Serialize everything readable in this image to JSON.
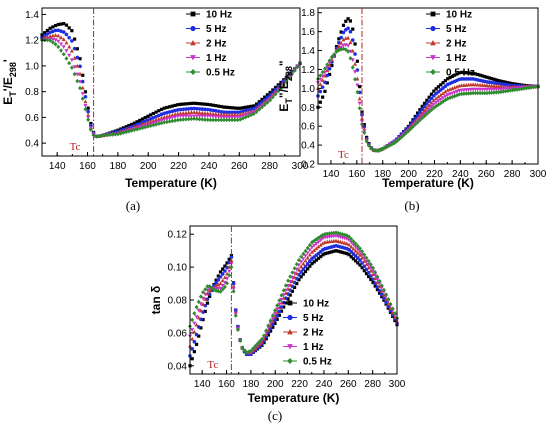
{
  "chart_data": [
    {
      "type": "scatter",
      "panel_label": "(a)",
      "xlabel": "Temperature (K)",
      "ylabel": {
        "main": "E",
        "sub1": "T",
        "sep": "'/E",
        "sub2": "298",
        "tail": "'"
      },
      "xlim": [
        130,
        300
      ],
      "ylim": [
        0.3,
        1.45
      ],
      "xticks": [
        140,
        160,
        180,
        200,
        220,
        240,
        260,
        280,
        300
      ],
      "yticks": [
        0.4,
        0.6,
        0.8,
        1.0,
        1.2,
        1.4
      ],
      "ytick_labels": [
        "0.4",
        "0.6",
        "0.8",
        "1.0",
        "1.2",
        "1.4"
      ],
      "tc_x": 164,
      "tc_label": "Tc",
      "legend_position": "top-right",
      "series": [
        {
          "name": "10 Hz",
          "color": "#000000",
          "marker": "square",
          "x": [
            130,
            135,
            140,
            145,
            150,
            155,
            160,
            163,
            166,
            170,
            180,
            190,
            200,
            210,
            220,
            230,
            240,
            250,
            260,
            270,
            280,
            290,
            300
          ],
          "y": [
            1.24,
            1.29,
            1.32,
            1.33,
            1.27,
            1.06,
            0.7,
            0.5,
            0.45,
            0.46,
            0.5,
            0.55,
            0.61,
            0.67,
            0.7,
            0.71,
            0.7,
            0.68,
            0.67,
            0.69,
            0.79,
            0.9,
            1.02
          ]
        },
        {
          "name": "5 Hz",
          "color": "#1f2fe0",
          "marker": "circle",
          "x": [
            130,
            135,
            140,
            145,
            150,
            155,
            160,
            163,
            166,
            170,
            180,
            190,
            200,
            210,
            220,
            230,
            240,
            250,
            260,
            270,
            280,
            290,
            300
          ],
          "y": [
            1.22,
            1.26,
            1.28,
            1.26,
            1.19,
            1.0,
            0.67,
            0.49,
            0.45,
            0.46,
            0.49,
            0.53,
            0.58,
            0.63,
            0.66,
            0.67,
            0.66,
            0.64,
            0.64,
            0.67,
            0.77,
            0.89,
            1.02
          ]
        },
        {
          "name": "2 Hz",
          "color": "#c0392b",
          "marker": "triangle-up",
          "x": [
            130,
            135,
            140,
            145,
            150,
            155,
            160,
            163,
            166,
            170,
            180,
            190,
            200,
            210,
            220,
            230,
            240,
            250,
            260,
            270,
            280,
            290,
            300
          ],
          "y": [
            1.21,
            1.23,
            1.24,
            1.2,
            1.11,
            0.94,
            0.64,
            0.48,
            0.45,
            0.46,
            0.48,
            0.52,
            0.56,
            0.6,
            0.63,
            0.64,
            0.63,
            0.62,
            0.62,
            0.65,
            0.75,
            0.88,
            1.02
          ]
        },
        {
          "name": "1 Hz",
          "color": "#cc33cc",
          "marker": "triangle-down",
          "x": [
            130,
            135,
            140,
            145,
            150,
            155,
            160,
            163,
            166,
            170,
            180,
            190,
            200,
            210,
            220,
            230,
            240,
            250,
            260,
            270,
            280,
            290,
            300
          ],
          "y": [
            1.2,
            1.21,
            1.2,
            1.14,
            1.04,
            0.88,
            0.62,
            0.48,
            0.45,
            0.46,
            0.47,
            0.51,
            0.54,
            0.58,
            0.61,
            0.61,
            0.61,
            0.6,
            0.6,
            0.64,
            0.74,
            0.87,
            1.02
          ]
        },
        {
          "name": "0.5 Hz",
          "color": "#2e8b2e",
          "marker": "diamond",
          "x": [
            130,
            135,
            140,
            145,
            150,
            155,
            160,
            163,
            166,
            170,
            180,
            190,
            200,
            210,
            220,
            230,
            240,
            250,
            260,
            270,
            280,
            290,
            300
          ],
          "y": [
            1.2,
            1.2,
            1.16,
            1.08,
            0.98,
            0.83,
            0.6,
            0.47,
            0.45,
            0.46,
            0.47,
            0.5,
            0.53,
            0.56,
            0.58,
            0.59,
            0.58,
            0.58,
            0.58,
            0.63,
            0.73,
            0.86,
            1.02
          ]
        }
      ]
    },
    {
      "type": "scatter",
      "panel_label": "(b)",
      "xlabel": "Temperature (K)",
      "ylabel": {
        "main": "E",
        "sub1": "T",
        "sep": "\"/E",
        "sub2": "298",
        "tail": "\""
      },
      "xlim": [
        130,
        300
      ],
      "ylim": [
        0.2,
        1.85
      ],
      "xticks": [
        140,
        160,
        180,
        200,
        220,
        240,
        260,
        280,
        300
      ],
      "yticks": [
        0.2,
        0.4,
        0.6,
        0.8,
        1.0,
        1.2,
        1.4,
        1.6,
        1.8
      ],
      "ytick_labels": [
        "0.2",
        "0.4",
        "0.6",
        "0.8",
        "1.0",
        "1.2",
        "1.4",
        "1.6",
        "1.8"
      ],
      "tc_x": 164,
      "tc_label": "Tc",
      "legend_position": "top-right",
      "series": [
        {
          "name": "10 Hz",
          "color": "#000000",
          "marker": "square",
          "x": [
            130,
            135,
            140,
            145,
            150,
            153,
            156,
            160,
            164,
            168,
            172,
            176,
            180,
            190,
            200,
            210,
            220,
            230,
            240,
            250,
            260,
            270,
            280,
            290,
            300
          ],
          "y": [
            0.8,
            0.95,
            1.2,
            1.48,
            1.68,
            1.74,
            1.7,
            1.35,
            0.75,
            0.45,
            0.35,
            0.34,
            0.36,
            0.45,
            0.6,
            0.8,
            0.98,
            1.1,
            1.17,
            1.16,
            1.12,
            1.08,
            1.05,
            1.03,
            1.02
          ]
        },
        {
          "name": "5 Hz",
          "color": "#1f2fe0",
          "marker": "circle",
          "x": [
            130,
            135,
            140,
            145,
            150,
            153,
            156,
            160,
            164,
            168,
            172,
            176,
            180,
            190,
            200,
            210,
            220,
            230,
            240,
            250,
            260,
            270,
            280,
            290,
            300
          ],
          "y": [
            0.92,
            1.05,
            1.25,
            1.45,
            1.6,
            1.64,
            1.58,
            1.25,
            0.72,
            0.44,
            0.35,
            0.34,
            0.36,
            0.45,
            0.59,
            0.77,
            0.93,
            1.04,
            1.1,
            1.1,
            1.07,
            1.05,
            1.03,
            1.02,
            1.02
          ]
        },
        {
          "name": "2 Hz",
          "color": "#c0392b",
          "marker": "triangle-up",
          "x": [
            130,
            135,
            140,
            145,
            150,
            153,
            156,
            160,
            164,
            168,
            172,
            176,
            180,
            190,
            200,
            210,
            220,
            230,
            240,
            250,
            260,
            270,
            280,
            290,
            300
          ],
          "y": [
            1.0,
            1.12,
            1.28,
            1.42,
            1.52,
            1.54,
            1.46,
            1.15,
            0.68,
            0.43,
            0.35,
            0.34,
            0.36,
            0.44,
            0.57,
            0.73,
            0.88,
            0.98,
            1.03,
            1.04,
            1.03,
            1.02,
            1.01,
            1.02,
            1.02
          ]
        },
        {
          "name": "1 Hz",
          "color": "#cc33cc",
          "marker": "triangle-down",
          "x": [
            130,
            135,
            140,
            145,
            150,
            153,
            156,
            160,
            164,
            168,
            172,
            176,
            180,
            190,
            200,
            210,
            220,
            230,
            240,
            250,
            260,
            270,
            280,
            290,
            300
          ],
          "y": [
            1.06,
            1.16,
            1.3,
            1.4,
            1.46,
            1.46,
            1.36,
            1.08,
            0.65,
            0.42,
            0.35,
            0.34,
            0.36,
            0.44,
            0.56,
            0.7,
            0.84,
            0.93,
            0.98,
            0.99,
            0.99,
            0.99,
            1.0,
            1.01,
            1.02
          ]
        },
        {
          "name": "0.5 Hz",
          "color": "#2e8b2e",
          "marker": "diamond",
          "x": [
            130,
            135,
            140,
            145,
            150,
            153,
            156,
            160,
            164,
            168,
            172,
            176,
            180,
            190,
            200,
            210,
            220,
            230,
            240,
            250,
            260,
            270,
            280,
            290,
            300
          ],
          "y": [
            1.1,
            1.2,
            1.32,
            1.4,
            1.42,
            1.4,
            1.28,
            1.0,
            0.62,
            0.42,
            0.35,
            0.34,
            0.36,
            0.43,
            0.55,
            0.68,
            0.8,
            0.89,
            0.94,
            0.95,
            0.95,
            0.96,
            0.98,
            1.0,
            1.02
          ]
        }
      ]
    },
    {
      "type": "scatter",
      "panel_label": "(c)",
      "xlabel": "Temperature (K)",
      "ylabel": {
        "main": "tan δ"
      },
      "xlim": [
        130,
        300
      ],
      "ylim": [
        0.035,
        0.125
      ],
      "xticks": [
        140,
        160,
        180,
        200,
        220,
        240,
        260,
        280,
        300
      ],
      "yticks": [
        0.04,
        0.06,
        0.08,
        0.1,
        0.12
      ],
      "ytick_labels": [
        "0.04",
        "0.06",
        "0.08",
        "0.10",
        "0.12"
      ],
      "tc_x": 164,
      "tc_label": "Tc",
      "legend_position": "center-left",
      "series": [
        {
          "name": "10 Hz",
          "color": "#000000",
          "marker": "square",
          "x": [
            130,
            135,
            140,
            145,
            150,
            155,
            160,
            164,
            168,
            172,
            176,
            180,
            190,
            200,
            210,
            220,
            230,
            240,
            250,
            260,
            270,
            280,
            290,
            300
          ],
          "y": [
            0.04,
            0.052,
            0.066,
            0.08,
            0.09,
            0.097,
            0.102,
            0.107,
            0.07,
            0.052,
            0.047,
            0.047,
            0.053,
            0.066,
            0.08,
            0.093,
            0.102,
            0.108,
            0.11,
            0.108,
            0.101,
            0.091,
            0.079,
            0.065
          ]
        },
        {
          "name": "5 Hz",
          "color": "#1f2fe0",
          "marker": "circle",
          "x": [
            130,
            135,
            140,
            145,
            150,
            155,
            160,
            164,
            168,
            172,
            176,
            180,
            190,
            200,
            210,
            220,
            230,
            240,
            250,
            260,
            270,
            280,
            290,
            300
          ],
          "y": [
            0.046,
            0.058,
            0.071,
            0.082,
            0.089,
            0.094,
            0.099,
            0.106,
            0.07,
            0.052,
            0.047,
            0.047,
            0.054,
            0.068,
            0.083,
            0.096,
            0.105,
            0.111,
            0.113,
            0.111,
            0.104,
            0.093,
            0.08,
            0.066
          ]
        },
        {
          "name": "2 Hz",
          "color": "#c0392b",
          "marker": "triangle-up",
          "x": [
            130,
            135,
            140,
            145,
            150,
            155,
            160,
            164,
            168,
            172,
            176,
            180,
            190,
            200,
            210,
            220,
            230,
            240,
            250,
            260,
            270,
            280,
            290,
            300
          ],
          "y": [
            0.052,
            0.064,
            0.076,
            0.085,
            0.088,
            0.09,
            0.095,
            0.104,
            0.069,
            0.052,
            0.048,
            0.048,
            0.055,
            0.07,
            0.086,
            0.099,
            0.109,
            0.115,
            0.116,
            0.114,
            0.107,
            0.096,
            0.082,
            0.067
          ]
        },
        {
          "name": "1 Hz",
          "color": "#cc33cc",
          "marker": "triangle-down",
          "x": [
            130,
            135,
            140,
            145,
            150,
            155,
            160,
            164,
            168,
            172,
            176,
            180,
            190,
            200,
            210,
            220,
            230,
            240,
            250,
            260,
            270,
            280,
            290,
            300
          ],
          "y": [
            0.058,
            0.069,
            0.08,
            0.087,
            0.087,
            0.087,
            0.092,
            0.102,
            0.068,
            0.052,
            0.048,
            0.048,
            0.056,
            0.072,
            0.088,
            0.102,
            0.112,
            0.118,
            0.119,
            0.117,
            0.109,
            0.098,
            0.084,
            0.068
          ]
        },
        {
          "name": "0.5 Hz",
          "color": "#2e8b2e",
          "marker": "diamond",
          "x": [
            130,
            135,
            140,
            145,
            150,
            155,
            160,
            164,
            168,
            172,
            176,
            180,
            190,
            200,
            210,
            220,
            230,
            240,
            250,
            260,
            270,
            280,
            290,
            300
          ],
          "y": [
            0.064,
            0.075,
            0.084,
            0.089,
            0.086,
            0.085,
            0.089,
            0.1,
            0.067,
            0.052,
            0.048,
            0.049,
            0.057,
            0.074,
            0.091,
            0.105,
            0.115,
            0.12,
            0.121,
            0.119,
            0.111,
            0.1,
            0.085,
            0.069
          ]
        }
      ]
    }
  ]
}
